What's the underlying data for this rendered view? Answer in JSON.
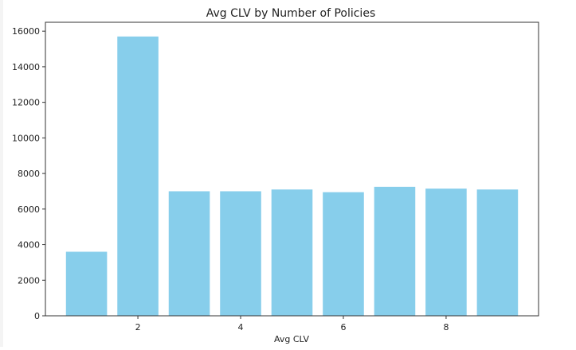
{
  "chart_data": {
    "type": "bar",
    "title": "Avg CLV by Number of Policies",
    "xlabel": "Avg CLV",
    "ylabel": "",
    "x": [
      1,
      2,
      3,
      4,
      5,
      6,
      7,
      8,
      9
    ],
    "values": [
      3600,
      15700,
      7000,
      7000,
      7100,
      6950,
      7250,
      7150,
      7100
    ],
    "x_ticks": [
      2,
      4,
      6,
      8
    ],
    "y_ticks": [
      0,
      2000,
      4000,
      6000,
      8000,
      10000,
      12000,
      14000,
      16000
    ],
    "ylim": [
      0,
      16500
    ],
    "xlim": [
      0.2,
      9.8
    ],
    "bar_color": "#87CEEB",
    "grid": false,
    "legend": "none"
  }
}
